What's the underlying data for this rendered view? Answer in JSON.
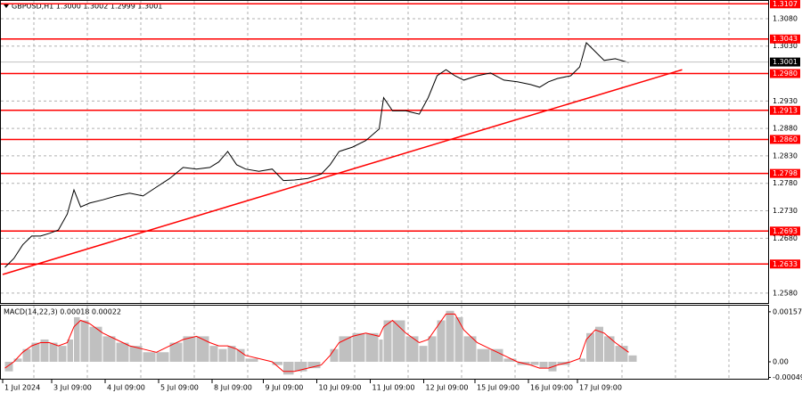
{
  "chart_data": [
    {
      "type": "line",
      "title": "GBPUSD,H1  1.3000 1.3002 1.2999 1.3001",
      "color": "#000000",
      "x": [
        1,
        5,
        9,
        13,
        17,
        21,
        25,
        29,
        32,
        35,
        39,
        45,
        51,
        57,
        63,
        69,
        75,
        81,
        87,
        93,
        97,
        101,
        105,
        109,
        115,
        121,
        126,
        131,
        137,
        143,
        147,
        151,
        157,
        163,
        169,
        171,
        175,
        181,
        187,
        191,
        195,
        199,
        203,
        207,
        213,
        219,
        225,
        231,
        237,
        241,
        245,
        249,
        255,
        259,
        262,
        266,
        270,
        275,
        281
      ],
      "values": [
        1.2627,
        1.2643,
        1.2668,
        1.2684,
        1.2684,
        1.2689,
        1.2695,
        1.2724,
        1.2768,
        1.2737,
        1.2744,
        1.275,
        1.2757,
        1.2762,
        1.2757,
        1.2773,
        1.2789,
        1.2809,
        1.2806,
        1.2809,
        1.2819,
        1.2838,
        1.2814,
        1.2806,
        1.2802,
        1.2806,
        1.2785,
        1.2786,
        1.2789,
        1.2797,
        1.2814,
        1.2838,
        1.2846,
        1.2858,
        1.2879,
        1.2936,
        1.2912,
        1.2912,
        1.2906,
        1.2936,
        1.2976,
        1.2987,
        1.2976,
        1.2968,
        1.2976,
        1.2981,
        1.2968,
        1.2965,
        1.296,
        1.2955,
        1.2965,
        1.2971,
        1.2976,
        1.2992,
        1.3036,
        1.302,
        1.3004,
        1.3007,
        1.3
      ],
      "xlim": [
        -1.2,
        343.6
      ],
      "ylim": [
        1.2562,
        1.3114
      ],
      "yticks": [
        {
          "value": 1.308,
          "label": "1.3080"
        },
        {
          "value": 1.303,
          "label": "1.3030"
        },
        {
          "value": 1.293,
          "label": "1.2930"
        },
        {
          "value": 1.288,
          "label": "1.2880"
        },
        {
          "value": 1.283,
          "label": "1.2830"
        },
        {
          "value": 1.278,
          "label": "1.2780"
        },
        {
          "value": 1.273,
          "label": "1.2730"
        },
        {
          "value": 1.268,
          "label": "1.2680"
        },
        {
          "value": 1.258,
          "label": "1.2580"
        }
      ],
      "levels": [
        {
          "value": 1.3107,
          "label": "1.3107"
        },
        {
          "value": 1.3043,
          "label": "1.3043"
        },
        {
          "value": 1.298,
          "label": "1.2980"
        },
        {
          "value": 1.2913,
          "label": "1.2913"
        },
        {
          "value": 1.286,
          "label": "1.2860"
        },
        {
          "value": 1.2798,
          "label": "1.2798"
        },
        {
          "value": 1.2693,
          "label": "1.2693"
        },
        {
          "value": 1.2633,
          "label": "1.2633"
        }
      ],
      "level_color": "#ff0000",
      "current_price": {
        "value": 1.3001,
        "label": "1.3001"
      },
      "trendline": {
        "x": [
          0,
          305
        ],
        "values": [
          1.2614,
          1.2987
        ],
        "color": "#ff0000"
      },
      "grid": true
    },
    {
      "type": "macd",
      "title": "MACD(14,22,3) 0.00018 0.00022",
      "x": [
        1,
        5,
        9,
        13,
        17,
        21,
        25,
        29,
        32,
        35,
        39,
        45,
        51,
        57,
        63,
        69,
        75,
        81,
        87,
        93,
        97,
        101,
        105,
        109,
        115,
        121,
        126,
        131,
        137,
        143,
        147,
        151,
        157,
        163,
        169,
        171,
        175,
        181,
        187,
        191,
        195,
        199,
        203,
        207,
        213,
        219,
        225,
        231,
        237,
        241,
        245,
        249,
        255,
        259,
        262,
        266,
        270,
        275,
        281
      ],
      "series": [
        {
          "color": "#c0c0c0",
          "values": [
            -0.0003,
            0.0001,
            0.0004,
            0.0006,
            0.0007,
            0.0006,
            0.0005,
            0.0007,
            0.0014,
            0.0013,
            0.0011,
            0.0008,
            0.0006,
            0.0005,
            0.0003,
            0.0003,
            0.0006,
            0.0008,
            0.0008,
            0.0005,
            0.0004,
            0.0005,
            0.0004,
            0.0001,
            0.0,
            -0.0001,
            -0.0004,
            -0.0003,
            -0.0002,
            0.0,
            0.0004,
            0.0008,
            0.0009,
            0.0009,
            0.0007,
            0.0013,
            0.0013,
            0.0008,
            0.0005,
            0.0008,
            0.0013,
            0.0016,
            0.0014,
            0.0008,
            0.0004,
            0.0004,
            0.0001,
            -0.0001,
            -0.0001,
            -0.0002,
            -0.0003,
            -0.0001,
            0.0,
            0.0001,
            0.0009,
            0.0011,
            0.0008,
            0.0005,
            0.0002
          ]
        },
        {
          "color": "#ff0000",
          "values": [
            -0.0002,
            0.0,
            0.0003,
            0.0005,
            0.0006,
            0.0006,
            0.0005,
            0.0006,
            0.0011,
            0.0013,
            0.0012,
            0.0009,
            0.0007,
            0.0005,
            0.0004,
            0.0003,
            0.0005,
            0.0007,
            0.0008,
            0.0006,
            0.0005,
            0.0005,
            0.0004,
            0.0002,
            0.0001,
            0.0,
            -0.0003,
            -0.0003,
            -0.0002,
            -0.0001,
            0.0002,
            0.0006,
            0.0008,
            0.0009,
            0.0008,
            0.0011,
            0.0013,
            0.0009,
            0.0006,
            0.0007,
            0.0011,
            0.0015,
            0.0015,
            0.001,
            0.0006,
            0.0004,
            0.0002,
            0.0,
            -0.0001,
            -0.0002,
            -0.0002,
            -0.0001,
            0.0,
            0.0001,
            0.0007,
            0.001,
            0.0009,
            0.0006,
            0.0003
          ]
        }
      ],
      "xlim": [
        -1.2,
        343.6
      ],
      "ylim": [
        -0.00056,
        0.00179
      ],
      "yticks": [
        0.00157,
        {
          "value": 0,
          "label": "0.00"
        },
        -0.00049
      ],
      "xticks": [
        {
          "value": 0,
          "label": "1 Jul 2024"
        },
        {
          "value": 22,
          "label": "3 Jul 09:00"
        },
        {
          "value": 46,
          "label": "4 Jul 09:00"
        },
        {
          "value": 70,
          "label": "5 Jul 09:00"
        },
        {
          "value": 94,
          "label": "8 Jul 09:00"
        },
        {
          "value": 117,
          "label": "9 Jul 09:00"
        },
        {
          "value": 141,
          "label": "10 Jul 09:00"
        },
        {
          "value": 165,
          "label": "11 Jul 09:00"
        },
        {
          "value": 189,
          "label": "12 Jul 09:00"
        },
        {
          "value": 212,
          "label": "15 Jul 09:00"
        },
        {
          "value": 236,
          "label": "16 Jul 09:00"
        },
        {
          "value": 258,
          "label": "17 Jul 09:00"
        }
      ]
    }
  ]
}
